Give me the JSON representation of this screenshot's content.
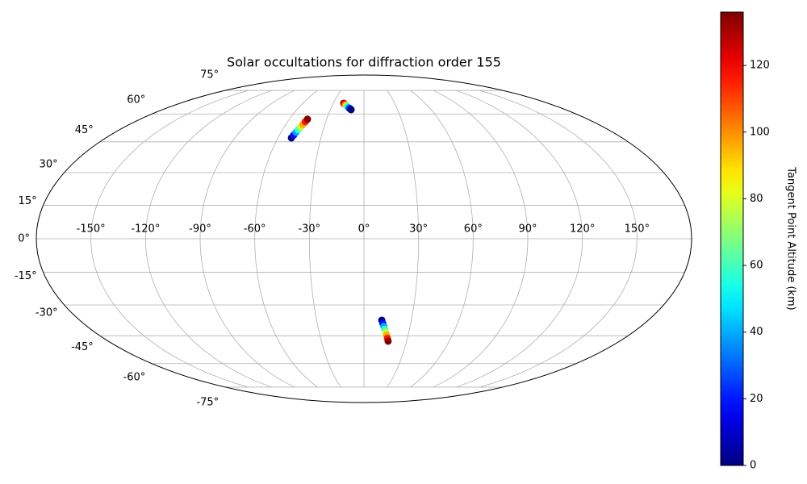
{
  "chart_data": {
    "type": "scatter",
    "projection": "mollweide",
    "title": "Solar occultations for diffraction order 155",
    "xlim": [
      -180,
      180
    ],
    "ylim": [
      -90,
      90
    ],
    "grid": true,
    "xticks": [
      {
        "value": -150,
        "label": "-150°"
      },
      {
        "value": -120,
        "label": "-120°"
      },
      {
        "value": -90,
        "label": "-90°"
      },
      {
        "value": -60,
        "label": "-60°"
      },
      {
        "value": -30,
        "label": "-30°"
      },
      {
        "value": 0,
        "label": "0°"
      },
      {
        "value": 30,
        "label": "30°"
      },
      {
        "value": 60,
        "label": "60°"
      },
      {
        "value": 90,
        "label": "90°"
      },
      {
        "value": 120,
        "label": "120°"
      },
      {
        "value": 150,
        "label": "150°"
      }
    ],
    "yticks": [
      {
        "value": -75,
        "label": "-75°"
      },
      {
        "value": -60,
        "label": "-60°"
      },
      {
        "value": -45,
        "label": "-45°"
      },
      {
        "value": -30,
        "label": "-30°"
      },
      {
        "value": -15,
        "label": "-15°"
      },
      {
        "value": 0,
        "label": "0°"
      },
      {
        "value": 15,
        "label": "15°"
      },
      {
        "value": 30,
        "label": "30°"
      },
      {
        "value": 45,
        "label": "45°"
      },
      {
        "value": 60,
        "label": "60°"
      },
      {
        "value": 75,
        "label": "75°"
      }
    ],
    "points": {
      "x": [
        -50.6,
        -49.9,
        -49.1,
        -48.4,
        -47.6,
        -46.9,
        -46.1,
        -45.4,
        -19.8,
        -18.6,
        -17.4,
        -16.2,
        -15.1,
        -13.9,
        -12.7,
        -11.5,
        11.3,
        12.1,
        12.9,
        13.7,
        14.6,
        15.4,
        16.2,
        17
      ],
      "y": [
        47,
        48.4,
        49.9,
        51.3,
        52.7,
        54.1,
        55.6,
        57,
        66.4,
        65.8,
        65.3,
        64.7,
        64.2,
        63.6,
        63.1,
        62.5,
        -37.3,
        -38.8,
        -40.3,
        -41.8,
        -43.3,
        -44.8,
        -46.3,
        -47.8
      ],
      "c": [
        0,
        19,
        39,
        58,
        77,
        96,
        116,
        135,
        135,
        116,
        96,
        77,
        58,
        39,
        19,
        0,
        0,
        19,
        39,
        58,
        77,
        96,
        116,
        135
      ]
    },
    "colorbar": {
      "label": "Tangent Point Altitude (km)",
      "cmap": "jet",
      "clim": [
        0,
        136
      ],
      "ticks": [
        0,
        20,
        40,
        60,
        80,
        100,
        120
      ]
    }
  }
}
